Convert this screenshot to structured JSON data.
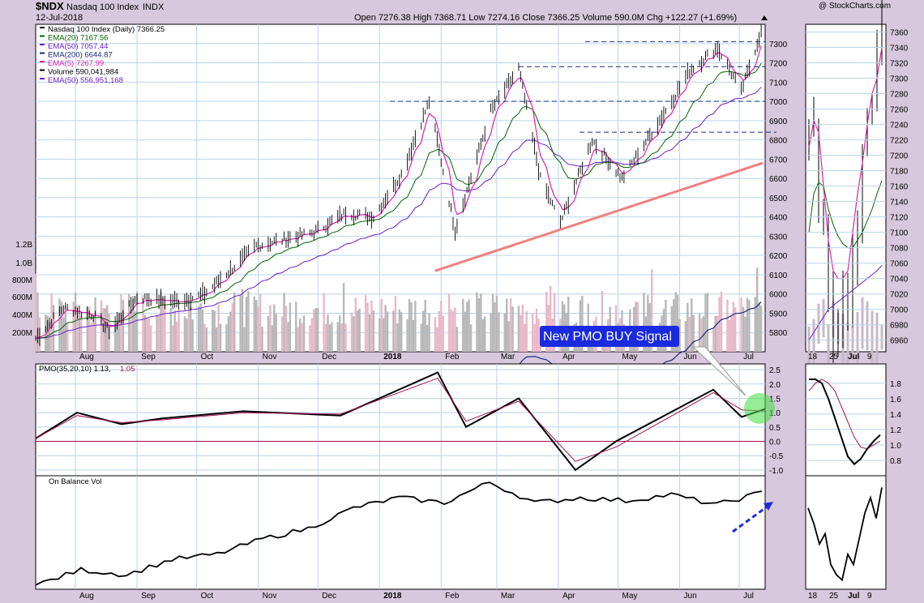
{
  "header": {
    "symbol": "$NDX",
    "name": "Nasdaq 100 Index",
    "exchange": "INDX",
    "date": "12-Jul-2018",
    "quote": "Open 7276.38   High 7368.71   Low 7274.16   Close 7366.25   Volume 590.0M   Chg +122.27 (+1.69%)",
    "watermark": "@ StockCharts.com"
  },
  "colors": {
    "price": "#000000",
    "ema20": "#006400",
    "ema50": "#6a1fd0",
    "ema200": "#1a2a80",
    "ema5": "#e020b0",
    "pmo_signal": "#a01050",
    "zero_line": "#a01050",
    "trend": "#f08080",
    "arrow": "#1a2ae0",
    "callout_bg": "#1a2ae0",
    "highlight": "#44dd44"
  },
  "main_legend": [
    "Nasdaq 100 Index (Daily) 7366.25",
    "EMA(20) 7167.56",
    "EMA(50) 7057.44",
    "EMA(200) 6644.87",
    "EMA(5) 7267.99",
    "Volume 590,041,984",
    "EMA(50) 556,951,168"
  ],
  "pmo_label": "PMO(35,20,10) 1.13,",
  "pmo_label2": "1.05",
  "obv_label": "On Balance Vol",
  "callout": "New PMO BUY Signal",
  "chart_data": [
    {
      "id": "price_main",
      "type": "line",
      "x_months": [
        "Aug",
        "Sep",
        "Oct",
        "Nov",
        "Dec",
        "2018",
        "Feb",
        "Mar",
        "Apr",
        "May",
        "Jun",
        "Jul"
      ],
      "ylim": [
        5700,
        7400
      ],
      "y_ticks": [
        5800,
        5900,
        6000,
        6100,
        6200,
        6300,
        6400,
        6500,
        6600,
        6700,
        6800,
        6900,
        7000,
        7100,
        7200,
        7300
      ],
      "volume_ticks": [
        "200M",
        "400M",
        "600M",
        "800M",
        "1.0B",
        "1.2B"
      ],
      "close_points": [
        [
          "2017-07-12",
          5770
        ],
        [
          "2017-07-26",
          5930
        ],
        [
          "2017-08-10",
          5890
        ],
        [
          "2017-08-18",
          5810
        ],
        [
          "2017-09-01",
          5980
        ],
        [
          "2017-09-22",
          5960
        ],
        [
          "2017-10-05",
          6000
        ],
        [
          "2017-10-31",
          6250
        ],
        [
          "2017-11-29",
          6320
        ],
        [
          "2017-12-15",
          6420
        ],
        [
          "2017-12-29",
          6400
        ],
        [
          "2018-01-12",
          6620
        ],
        [
          "2018-01-26",
          7000
        ],
        [
          "2018-02-08",
          6330
        ],
        [
          "2018-02-26",
          6950
        ],
        [
          "2018-03-12",
          7170
        ],
        [
          "2018-03-23",
          6600
        ],
        [
          "2018-04-02",
          6370
        ],
        [
          "2018-04-18",
          6800
        ],
        [
          "2018-05-03",
          6600
        ],
        [
          "2018-05-25",
          6950
        ],
        [
          "2018-06-06",
          7160
        ],
        [
          "2018-06-20",
          7280
        ],
        [
          "2018-07-02",
          7050
        ],
        [
          "2018-07-12",
          7366
        ]
      ],
      "ema20": [
        7167.56
      ],
      "ema50": [
        7057.44
      ],
      "ema200": [
        6644.87
      ],
      "ema5": [
        7267.99
      ],
      "resistance_lines": [
        7000,
        7180,
        7310,
        6840
      ],
      "trend_line": [
        [
          "2018-02-02",
          6120
        ],
        [
          "2018-07-12",
          6680
        ]
      ]
    },
    {
      "id": "price_inset",
      "type": "line",
      "x_ticks": [
        "18",
        "25",
        "Jul",
        "9"
      ],
      "ylim": [
        6945,
        7370
      ],
      "y_ticks": [
        6960,
        6980,
        7000,
        7020,
        7040,
        7060,
        7080,
        7100,
        7120,
        7140,
        7160,
        7180,
        7200,
        7220,
        7240,
        7260,
        7280,
        7300,
        7320,
        7340,
        7360
      ]
    },
    {
      "id": "pmo",
      "type": "line",
      "series": [
        {
          "values": [
            0.1,
            1.0,
            0.6,
            0.8,
            1.05,
            0.9,
            2.4,
            0.5,
            1.5,
            -1.0,
            0.0,
            1.8,
            0.85,
            1.13
          ]
        },
        {
          "values": [
            0.1,
            0.9,
            0.65,
            0.75,
            1.0,
            0.95,
            2.2,
            0.7,
            1.4,
            -0.7,
            -0.2,
            1.7,
            1.1,
            1.05
          ]
        }
      ],
      "ylim": [
        -1.2,
        2.7
      ],
      "y_ticks": [
        -1.0,
        -0.5,
        0.0,
        0.5,
        1.0,
        1.5,
        2.0,
        2.5
      ],
      "inset_y_ticks": [
        0.8,
        1.0,
        1.2,
        1.4,
        1.6,
        1.8
      ]
    },
    {
      "id": "obv",
      "type": "line",
      "values": [
        0.0,
        0.15,
        0.1,
        0.25,
        0.3,
        0.45,
        0.55,
        0.75,
        0.85,
        0.8,
        1.0,
        0.8,
        0.85,
        0.82,
        0.88,
        0.78,
        0.9
      ]
    }
  ]
}
